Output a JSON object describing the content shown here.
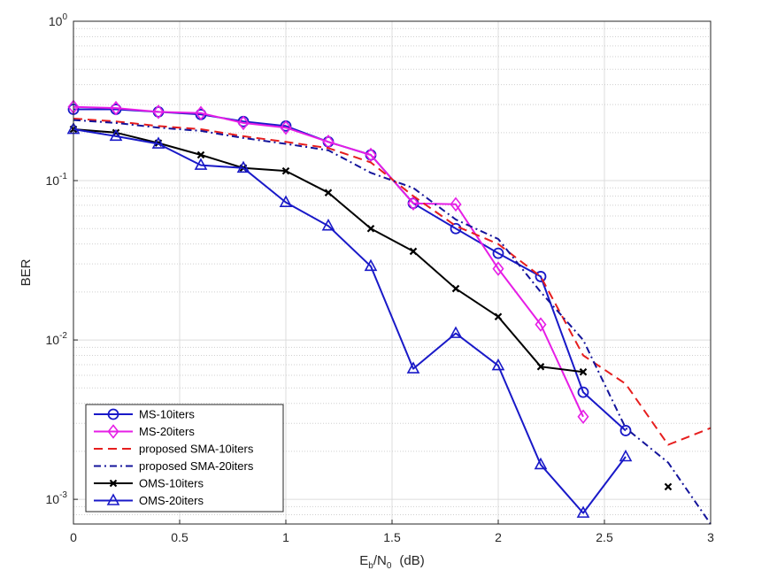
{
  "chart_data": {
    "type": "line",
    "title": "",
    "xlabel": "E",
    "xlabel_sub": "b",
    "xlabel_mid": "/N",
    "xlabel_sub2": "0",
    "xlabel_unit": "(dB)",
    "ylabel": "BER",
    "xlim": [
      0,
      3
    ],
    "ylim": [
      0.0007,
      1
    ],
    "yscale": "log",
    "grid": true,
    "legend_position": "bottom-left",
    "x_ticks": [
      {
        "value": 0,
        "label": "0"
      },
      {
        "value": 0.5,
        "label": "0.5"
      },
      {
        "value": 1,
        "label": "1"
      },
      {
        "value": 1.5,
        "label": "1.5"
      },
      {
        "value": 2,
        "label": "2"
      },
      {
        "value": 2.5,
        "label": "2.5"
      },
      {
        "value": 3,
        "label": "3"
      }
    ],
    "y_ticks": [
      {
        "value": 1,
        "base": "10",
        "exp": "0"
      },
      {
        "value": 0.1,
        "base": "10",
        "exp": "-1"
      },
      {
        "value": 0.01,
        "base": "10",
        "exp": "-2"
      },
      {
        "value": 0.001,
        "base": "10",
        "exp": "-3"
      }
    ],
    "series": [
      {
        "name": "MS-10iters",
        "color": "#1919c8",
        "dash": "",
        "marker": "circle",
        "x": [
          0,
          0.2,
          0.4,
          0.6,
          0.8,
          1.0,
          1.2,
          1.4,
          1.6,
          1.8,
          2.0,
          2.2,
          2.4,
          2.6
        ],
        "y": [
          0.28,
          0.28,
          0.27,
          0.26,
          0.235,
          0.22,
          0.175,
          0.145,
          0.072,
          0.05,
          0.035,
          0.025,
          0.0047,
          0.0027
        ]
      },
      {
        "name": "MS-20iters",
        "color": "#e61ee6",
        "dash": "",
        "marker": "diamond",
        "x": [
          0,
          0.2,
          0.4,
          0.6,
          0.8,
          1.0,
          1.2,
          1.4,
          1.6,
          1.8,
          2.0,
          2.2,
          2.4
        ],
        "y": [
          0.29,
          0.285,
          0.27,
          0.265,
          0.23,
          0.215,
          0.175,
          0.145,
          0.072,
          0.071,
          0.028,
          0.0125,
          0.0033
        ]
      },
      {
        "name": "proposed SMA-10iters",
        "color": "#e61e1e",
        "dash": "10,6",
        "marker": "none",
        "x": [
          0,
          0.2,
          0.4,
          0.6,
          0.8,
          1.0,
          1.2,
          1.4,
          1.6,
          1.8,
          2.0,
          2.2,
          2.4,
          2.6,
          2.8,
          3.0
        ],
        "y": [
          0.245,
          0.235,
          0.22,
          0.21,
          0.19,
          0.175,
          0.16,
          0.13,
          0.08,
          0.052,
          0.04,
          0.025,
          0.008,
          0.0053,
          0.0022,
          0.0028
        ]
      },
      {
        "name": "proposed SMA-20iters",
        "color": "#14149b",
        "dash": "8,4,2,4",
        "marker": "none",
        "x": [
          0,
          0.2,
          0.4,
          0.6,
          0.8,
          1.0,
          1.2,
          1.4,
          1.6,
          1.8,
          2.0,
          2.2,
          2.4,
          2.6,
          2.8,
          3.0
        ],
        "y": [
          0.24,
          0.23,
          0.215,
          0.205,
          0.185,
          0.17,
          0.155,
          0.112,
          0.09,
          0.057,
          0.043,
          0.02,
          0.01,
          0.0028,
          0.0017,
          0.0007
        ]
      },
      {
        "name": "OMS-10iters",
        "color": "#000000",
        "dash": "",
        "marker": "x",
        "x": [
          0,
          0.2,
          0.4,
          0.6,
          0.8,
          1.0,
          1.2,
          1.4,
          1.6,
          1.8,
          2.0,
          2.2,
          2.4
        ],
        "y": [
          0.21,
          0.2,
          0.172,
          0.145,
          0.12,
          0.115,
          0.084,
          0.05,
          0.036,
          0.021,
          0.014,
          0.0068,
          0.0063
        ]
      },
      {
        "name": "OMS-20iters",
        "color": "#1919c8",
        "dash": "",
        "marker": "triangle",
        "x": [
          0,
          0.2,
          0.4,
          0.6,
          0.8,
          1.0,
          1.2,
          1.4,
          1.6,
          1.8,
          2.0,
          2.2,
          2.4,
          2.6
        ],
        "y": [
          0.21,
          0.19,
          0.17,
          0.125,
          0.12,
          0.073,
          0.052,
          0.029,
          0.0066,
          0.011,
          0.0069,
          0.00165,
          0.00082,
          0.00185
        ]
      }
    ],
    "isolated_points": [
      {
        "series": "OMS-10iters",
        "x": 2.8,
        "y": 0.0012
      }
    ]
  }
}
